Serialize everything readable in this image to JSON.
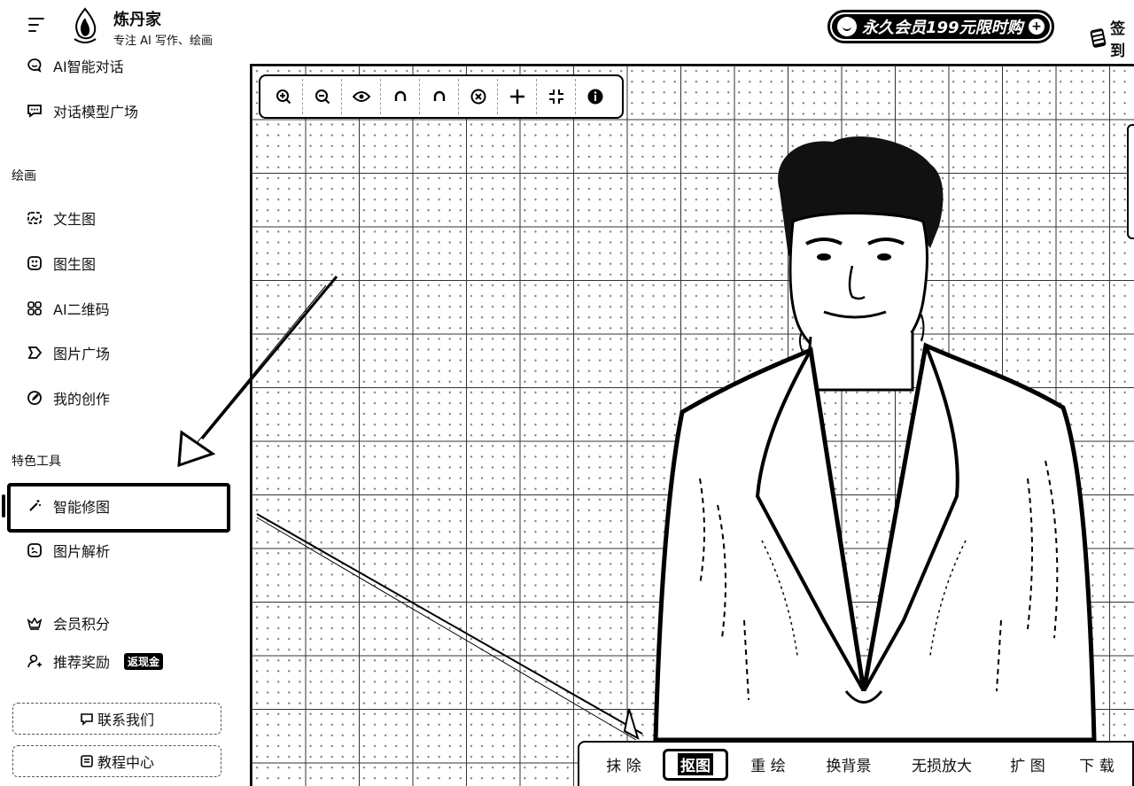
{
  "header": {
    "brand_title": "炼丹家",
    "brand_subtitle": "专注 AI 写作、绘画",
    "promo_label": "永久会员199元限时购",
    "checkin_label": "签到"
  },
  "sidebar": {
    "chat_items": [
      {
        "label": "AI智能对话",
        "icon": "chat-icon"
      },
      {
        "label": "对话模型广场",
        "icon": "model-chat-icon"
      }
    ],
    "section_drawing": "绘画",
    "drawing_items": [
      {
        "label": "文生图",
        "icon": "text-to-image-icon"
      },
      {
        "label": "图生图",
        "icon": "image-to-image-icon"
      },
      {
        "label": "AI二维码",
        "icon": "qrcode-icon"
      },
      {
        "label": "图片广场",
        "icon": "gallery-icon"
      },
      {
        "label": "我的创作",
        "icon": "edit-icon"
      }
    ],
    "section_tools": "特色工具",
    "tool_items": [
      {
        "label": "智能修图",
        "icon": "magic-wand-icon",
        "active": true
      },
      {
        "label": "图片解析",
        "icon": "image-analysis-icon"
      }
    ],
    "member_label": "会员积分",
    "referral_label": "推荐奖励",
    "referral_badge": "返现金",
    "contact_button": "联系我们",
    "tutorial_button": "教程中心"
  },
  "toolbar": {
    "tools": [
      "zoom-in-icon",
      "zoom-out-icon",
      "eye-icon",
      "undo-icon",
      "redo-icon",
      "clear-icon",
      "move-icon",
      "fit-screen-icon",
      "info-icon"
    ]
  },
  "actions": {
    "erase": "抹 除",
    "cutout": "抠图",
    "repaint": "重 绘",
    "change_bg": "换背景",
    "upscale": "无损放大",
    "expand": "扩 图",
    "download": "下 载"
  }
}
